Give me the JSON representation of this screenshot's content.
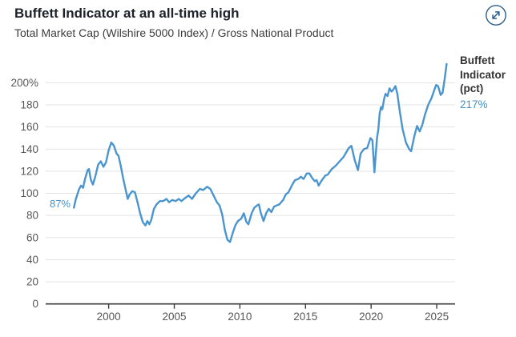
{
  "header": {
    "title": "Buffett Indicator at an all-time high",
    "subtitle": "Total Market Cap (Wilshire 5000 Index) / Gross National Product"
  },
  "icons": {
    "expand": "expand-arrows-icon"
  },
  "colors": {
    "line": "#4b95cf",
    "accent_text": "#4290c9",
    "title": "#1d2129",
    "subtitle": "#3c3c3c",
    "axis_label": "#565656",
    "gridline": "#e3e3e3",
    "axis_line": "#3a3a3a",
    "icon": "#2c5d8a"
  },
  "legend": {
    "series_name": "Buffett Indicator (pct)",
    "current_value": "217%"
  },
  "annotations": {
    "start_value": "87%"
  },
  "chart_data": {
    "type": "line",
    "title": "Buffett Indicator at an all-time high",
    "subtitle": "Total Market Cap (Wilshire 5000 Index) / Gross National Product",
    "xlabel": "",
    "ylabel": "Buffett Indicator (pct)",
    "grid": "horizontal",
    "legend_position": "right",
    "x_range": [
      1995.2,
      2026.4
    ],
    "ylim": [
      0,
      222
    ],
    "x_ticks": [
      2000,
      2005,
      2010,
      2015,
      2020,
      2025
    ],
    "y_ticks": [
      0,
      20,
      40,
      60,
      80,
      100,
      120,
      140,
      160,
      180,
      200
    ],
    "y_tick_labels": [
      "0",
      "20",
      "40",
      "60",
      "80",
      "100",
      "120",
      "140",
      "160",
      "180",
      "200%"
    ],
    "point_annotations": [
      {
        "text": "87%",
        "x": 1997.35,
        "y": 87,
        "position": "left-of-first-point"
      },
      {
        "text": "217%",
        "x": 2025.75,
        "y": 217,
        "position": "legend-right"
      }
    ],
    "series": [
      {
        "name": "Buffett Indicator (pct)",
        "points": [
          [
            1997.35,
            87
          ],
          [
            1997.5,
            95
          ],
          [
            1997.75,
            104
          ],
          [
            1997.9,
            107
          ],
          [
            1998.05,
            105
          ],
          [
            1998.2,
            113
          ],
          [
            1998.4,
            121
          ],
          [
            1998.5,
            122
          ],
          [
            1998.65,
            112
          ],
          [
            1998.8,
            108
          ],
          [
            1999.0,
            116
          ],
          [
            1999.2,
            126
          ],
          [
            1999.4,
            129
          ],
          [
            1999.6,
            124
          ],
          [
            1999.8,
            128
          ],
          [
            2000.0,
            139
          ],
          [
            2000.2,
            146
          ],
          [
            2000.4,
            143
          ],
          [
            2000.6,
            136
          ],
          [
            2000.75,
            134
          ],
          [
            2000.9,
            126
          ],
          [
            2001.1,
            114
          ],
          [
            2001.3,
            103
          ],
          [
            2001.45,
            95
          ],
          [
            2001.6,
            99
          ],
          [
            2001.8,
            102
          ],
          [
            2002.0,
            101
          ],
          [
            2002.2,
            92
          ],
          [
            2002.4,
            82
          ],
          [
            2002.6,
            74
          ],
          [
            2002.8,
            71
          ],
          [
            2002.95,
            75
          ],
          [
            2003.1,
            72
          ],
          [
            2003.25,
            76
          ],
          [
            2003.45,
            86
          ],
          [
            2003.65,
            90
          ],
          [
            2003.9,
            93
          ],
          [
            2004.15,
            93
          ],
          [
            2004.4,
            95
          ],
          [
            2004.6,
            92
          ],
          [
            2004.85,
            94
          ],
          [
            2005.1,
            93
          ],
          [
            2005.35,
            95
          ],
          [
            2005.55,
            93
          ],
          [
            2005.85,
            96
          ],
          [
            2006.1,
            98
          ],
          [
            2006.35,
            95
          ],
          [
            2006.65,
            100
          ],
          [
            2006.95,
            104
          ],
          [
            2007.2,
            103
          ],
          [
            2007.5,
            106
          ],
          [
            2007.75,
            104
          ],
          [
            2008.0,
            98
          ],
          [
            2008.25,
            92
          ],
          [
            2008.45,
            89
          ],
          [
            2008.65,
            81
          ],
          [
            2008.85,
            67
          ],
          [
            2009.05,
            58
          ],
          [
            2009.25,
            56
          ],
          [
            2009.45,
            64
          ],
          [
            2009.65,
            71
          ],
          [
            2009.85,
            75
          ],
          [
            2010.1,
            77
          ],
          [
            2010.3,
            82
          ],
          [
            2010.5,
            74
          ],
          [
            2010.65,
            72
          ],
          [
            2010.9,
            82
          ],
          [
            2011.1,
            87
          ],
          [
            2011.3,
            89
          ],
          [
            2011.45,
            90
          ],
          [
            2011.6,
            82
          ],
          [
            2011.8,
            75
          ],
          [
            2012.0,
            82
          ],
          [
            2012.2,
            86
          ],
          [
            2012.4,
            83
          ],
          [
            2012.6,
            88
          ],
          [
            2012.8,
            89
          ],
          [
            2013.0,
            90
          ],
          [
            2013.3,
            94
          ],
          [
            2013.5,
            99
          ],
          [
            2013.7,
            101
          ],
          [
            2014.0,
            108
          ],
          [
            2014.2,
            112
          ],
          [
            2014.45,
            113
          ],
          [
            2014.65,
            115
          ],
          [
            2014.85,
            113
          ],
          [
            2015.1,
            118
          ],
          [
            2015.3,
            118
          ],
          [
            2015.5,
            114
          ],
          [
            2015.7,
            111
          ],
          [
            2015.85,
            112
          ],
          [
            2016.0,
            107
          ],
          [
            2016.2,
            111
          ],
          [
            2016.5,
            116
          ],
          [
            2016.7,
            117
          ],
          [
            2017.0,
            122
          ],
          [
            2017.3,
            125
          ],
          [
            2017.6,
            129
          ],
          [
            2017.9,
            133
          ],
          [
            2018.1,
            137
          ],
          [
            2018.3,
            141
          ],
          [
            2018.5,
            143
          ],
          [
            2018.75,
            130
          ],
          [
            2019.0,
            121
          ],
          [
            2019.2,
            136
          ],
          [
            2019.45,
            140
          ],
          [
            2019.7,
            141
          ],
          [
            2019.95,
            150
          ],
          [
            2020.1,
            148
          ],
          [
            2020.25,
            119
          ],
          [
            2020.45,
            150
          ],
          [
            2020.55,
            158
          ],
          [
            2020.65,
            172
          ],
          [
            2020.75,
            178
          ],
          [
            2020.85,
            176
          ],
          [
            2021.0,
            186
          ],
          [
            2021.1,
            190
          ],
          [
            2021.25,
            188
          ],
          [
            2021.4,
            195
          ],
          [
            2021.55,
            192
          ],
          [
            2021.7,
            194
          ],
          [
            2021.85,
            197
          ],
          [
            2022.0,
            190
          ],
          [
            2022.2,
            173
          ],
          [
            2022.4,
            158
          ],
          [
            2022.65,
            146
          ],
          [
            2022.9,
            140
          ],
          [
            2023.05,
            138
          ],
          [
            2023.3,
            152
          ],
          [
            2023.5,
            161
          ],
          [
            2023.7,
            156
          ],
          [
            2023.9,
            162
          ],
          [
            2024.1,
            171
          ],
          [
            2024.35,
            180
          ],
          [
            2024.6,
            186
          ],
          [
            2024.8,
            193
          ],
          [
            2024.95,
            198
          ],
          [
            2025.1,
            197
          ],
          [
            2025.3,
            189
          ],
          [
            2025.45,
            191
          ],
          [
            2025.6,
            203
          ],
          [
            2025.75,
            217
          ]
        ]
      }
    ]
  }
}
